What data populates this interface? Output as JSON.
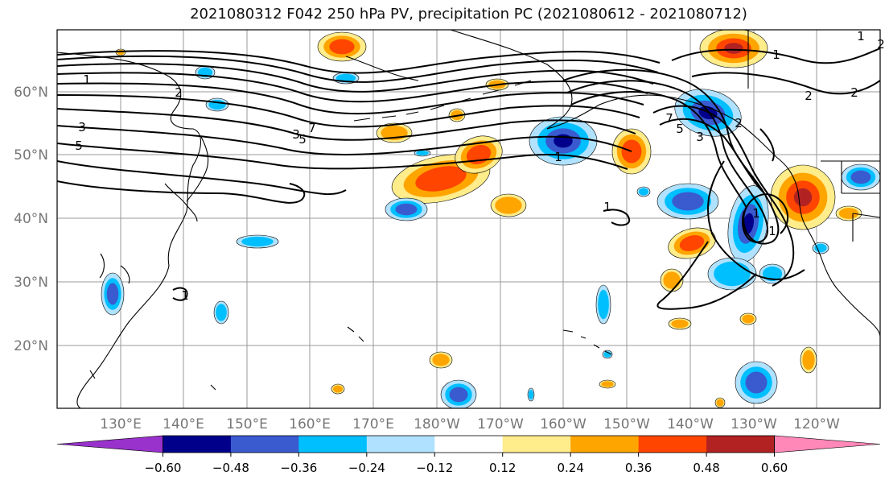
{
  "title": "2021080312 F042 250 hPa PV, precipitation PC (2021080612 - 2021080712)",
  "map": {
    "lat_labels": [
      "60°N",
      "50°N",
      "40°N",
      "30°N",
      "20°N"
    ],
    "lon_labels": [
      "130°E",
      "140°E",
      "150°E",
      "160°E",
      "170°E",
      "180°W",
      "170°W",
      "160°W",
      "150°W",
      "140°W",
      "130°W",
      "120°W"
    ],
    "pv_contour_labels": [
      "1",
      "2",
      "3",
      "5",
      "1",
      "3",
      "5",
      "7",
      "1",
      "2",
      "1",
      "2",
      "3",
      "5",
      "7",
      "1",
      "1",
      "1",
      "2",
      "2",
      "1",
      "1"
    ]
  },
  "colorbar": {
    "ticks": [
      "−0.60",
      "−0.48",
      "−0.36",
      "−0.24",
      "−0.12",
      "0.12",
      "0.24",
      "0.36",
      "0.48",
      "0.60"
    ],
    "colors": {
      "lt_neg060": "#9932cc",
      "neg060_neg048": "#00008b",
      "neg048_neg036": "#3a5bd0",
      "neg036_neg024": "#00bfff",
      "neg024_neg012": "#b0e2ff",
      "neg012_012": "#ffffff",
      "p012_024": "#ffec8b",
      "p024_036": "#ffa500",
      "p036_048": "#ff4500",
      "p048_060": "#b22222",
      "gt_060": "#ff88b8"
    }
  }
}
